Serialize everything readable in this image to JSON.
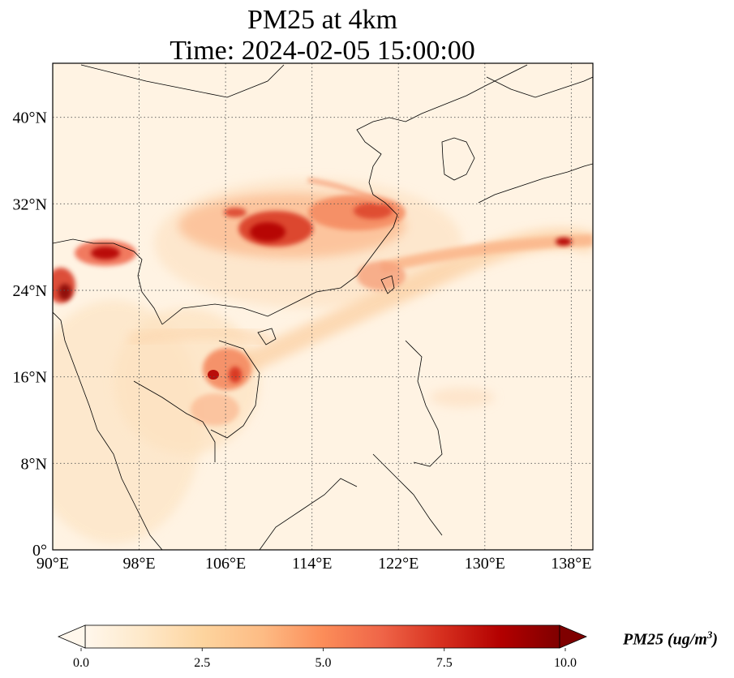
{
  "title": {
    "line1": "PM25 at 4km",
    "line2": "Time: 2024-02-05 15:00:00"
  },
  "map": {
    "variable": "PM25",
    "lon_range": [
      90,
      140
    ],
    "lat_range": [
      0,
      45
    ],
    "lon_ticks": [
      "90°E",
      "98°E",
      "106°E",
      "114°E",
      "122°E",
      "130°E",
      "138°E"
    ],
    "lat_ticks": [
      "0°",
      "8°N",
      "16°N",
      "24°N",
      "32°N",
      "40°N"
    ],
    "gridlines": "dotted"
  },
  "colorbar": {
    "label_prefix": "PM25 (ug/m",
    "label_sup": "3",
    "label_suffix": ")",
    "ticks": [
      "0.0",
      "2.5",
      "5.0",
      "7.5",
      "10.0"
    ],
    "min": 0,
    "max": 10,
    "extend": "both",
    "colormap": "OrRd",
    "colors": [
      "#fff7ec",
      "#fee8c8",
      "#fdd49e",
      "#fdbb84",
      "#fc8d59",
      "#ef6548",
      "#d7301f",
      "#b30000",
      "#7f0000"
    ]
  }
}
